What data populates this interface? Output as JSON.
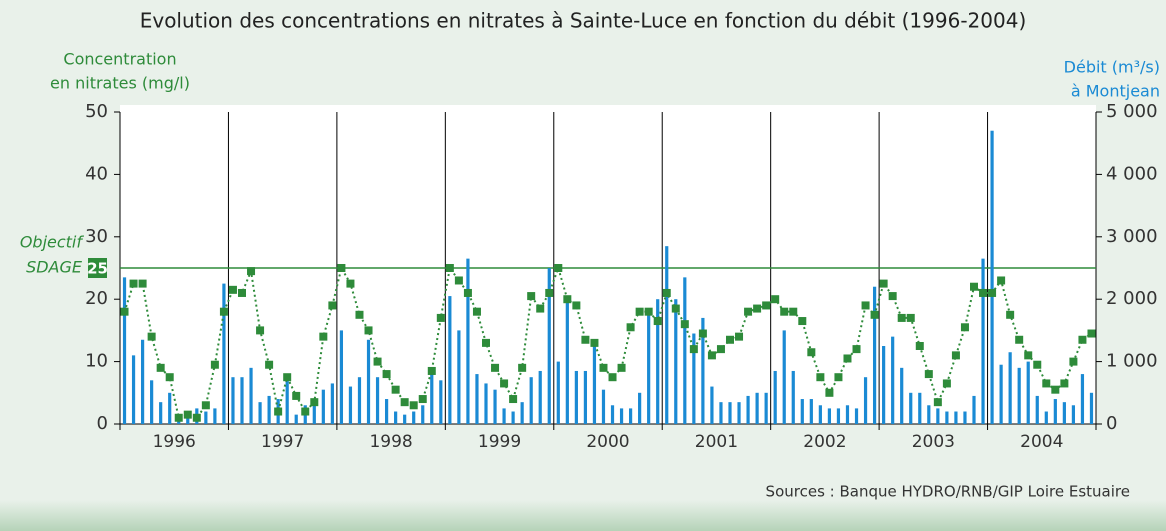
{
  "chart_data": {
    "type": "combo",
    "title": "Evolution des concentrations en nitrates à Sainte-Luce en fonction du débit (1996-2004)",
    "y_label": [
      "Concentration",
      "en nitrates (mg/l)"
    ],
    "y2_label": [
      "Débit (m³/s)",
      "à Montjean"
    ],
    "source": "Sources : Banque HYDRO/RNB/GIP Loire Estuaire",
    "categories": [
      "1996",
      "1997",
      "1998",
      "1999",
      "2000",
      "2001",
      "2002",
      "2003",
      "2004"
    ],
    "ylim": [
      0,
      50
    ],
    "yticks": [
      0,
      10,
      20,
      30,
      40,
      50
    ],
    "y2lim": [
      0,
      5000
    ],
    "y2ticks": [
      0,
      {
        "value": 1000,
        "label": "1 000"
      },
      {
        "value": 2000,
        "label": "2 000"
      },
      {
        "value": 3000,
        "label": "3 000"
      },
      {
        "value": 4000,
        "label": "4 000"
      },
      {
        "value": 5000,
        "label": "5 000"
      }
    ],
    "target": {
      "value": 25,
      "label": [
        "Objectif",
        "SDAGE"
      ],
      "color": "#2e8b3a"
    },
    "series": [
      {
        "type": "bar",
        "axis": "y2",
        "color": "#1a8ad4",
        "values": [
          [
            2350,
            1100,
            1350,
            700,
            350,
            500,
            100,
            200,
            250,
            200,
            250,
            2250
          ],
          [
            750,
            750,
            900,
            350,
            450,
            400,
            700,
            150,
            300,
            400,
            550,
            650
          ],
          [
            1500,
            600,
            750,
            1350,
            750,
            400,
            200,
            150,
            200,
            300,
            800,
            700
          ],
          [
            2050,
            1500,
            2650,
            800,
            650,
            550,
            250,
            200,
            350,
            750,
            850,
            2500
          ],
          [
            1000,
            2000,
            850,
            850,
            1350,
            550,
            300,
            250,
            250,
            500,
            1800,
            2000
          ],
          [
            2850,
            2000,
            2350,
            1450,
            1700,
            600,
            350,
            350,
            350,
            450,
            500,
            500
          ],
          [
            850,
            1500,
            850,
            400,
            400,
            300,
            250,
            250,
            300,
            250,
            750,
            2200
          ],
          [
            1250,
            1400,
            900,
            500,
            500,
            300,
            250,
            200,
            200,
            200,
            450,
            2650
          ],
          [
            4700,
            950,
            1150,
            900,
            1000,
            450,
            200,
            400,
            350,
            300,
            800,
            500
          ]
        ]
      },
      {
        "type": "line",
        "axis": "y",
        "color": "#2e8b3a",
        "values": [
          [
            18,
            22.5,
            22.5,
            14,
            9,
            7.5,
            1,
            1.5,
            1,
            3,
            9.5,
            18
          ],
          [
            21.5,
            21,
            24.5,
            15,
            9.5,
            2,
            7.5,
            4.5,
            2,
            3.5,
            14,
            19
          ],
          [
            25,
            22.5,
            17.5,
            15,
            10,
            8,
            5.5,
            3.5,
            3,
            4,
            8.5,
            17
          ],
          [
            25,
            23,
            21,
            18,
            13,
            9,
            6.5,
            4,
            9,
            20.5,
            18.5,
            21
          ],
          [
            25,
            20,
            19,
            13.5,
            13,
            9,
            7.5,
            9,
            15.5,
            18,
            18,
            16.5
          ],
          [
            21,
            18.5,
            16,
            12,
            14.5,
            11,
            12,
            13.5,
            14,
            18,
            18.5,
            19
          ],
          [
            20,
            18,
            18,
            16.5,
            11.5,
            7.5,
            5,
            7.5,
            10.5,
            12,
            19,
            17.5
          ],
          [
            22.5,
            20.5,
            17,
            17,
            12.5,
            8,
            3.5,
            6.5,
            11,
            15.5,
            22,
            21
          ],
          [
            21,
            23,
            17.5,
            13.5,
            11,
            9.5,
            6.5,
            5.5,
            6.5,
            10,
            13.5,
            14.5
          ]
        ]
      }
    ]
  }
}
